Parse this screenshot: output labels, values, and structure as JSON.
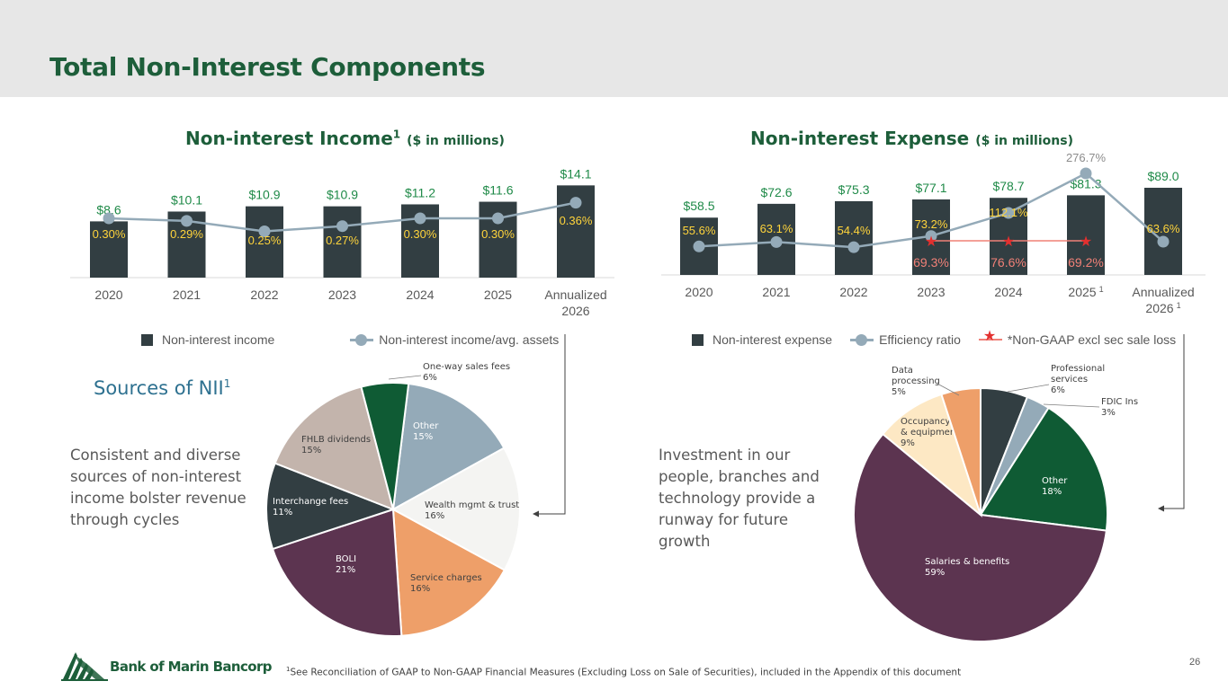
{
  "page": {
    "title": "Total Non-Interest Components",
    "page_number": "26",
    "footnote_marker": "1",
    "footnote": "See Reconciliation of GAAP to Non-GAAP Financial Measures (Excluding Loss on Sale of Securities), included in the Appendix of this document",
    "logo_text": "Bank of Marin Bancorp",
    "logo_icon": "trees-logo-icon"
  },
  "colors": {
    "bar": "#323e42",
    "line": "#94aab8",
    "green_value": "#1f8a48",
    "ratio_label": "#ffd43b",
    "nongaap_label": "#f08077",
    "star": "#e3302f",
    "title_green": "#1d5e3a"
  },
  "income_section": {
    "title": "Non-interest Income",
    "title_sup": "1",
    "title_unit": "($ in millions)",
    "legend_bar": "Non-interest income",
    "legend_line": "Non-interest income/avg. assets"
  },
  "expense_section": {
    "title": "Non-interest Expense",
    "title_unit": "($ in millions)",
    "legend_bar": "Non-interest expense",
    "legend_line": "Efficiency ratio",
    "legend_nongaap": "*Non-GAAP excl sec sale loss"
  },
  "sources_section": {
    "heading": "Sources of NII",
    "heading_sup": "1",
    "blurb": [
      "Consistent and diverse",
      "sources of non-interest",
      "income bolster revenue",
      "through cycles"
    ]
  },
  "expense_text": {
    "blurb": [
      "Investment in our",
      "people, branches and",
      "technology provide a",
      "runway for future",
      "growth"
    ]
  },
  "chart_data": [
    {
      "type": "bar",
      "categories": [
        "2020",
        "2021",
        "2022",
        "2023",
        "2024",
        "2025",
        "Annualized 2026"
      ],
      "series": [
        {
          "name": "Non-interest income",
          "values": [
            8.6,
            10.1,
            10.9,
            10.9,
            11.2,
            11.6,
            14.1
          ],
          "labels": [
            "$8.6",
            "$10.1",
            "$10.9",
            "$10.9",
            "$11.2",
            "$11.6",
            "$14.1"
          ]
        },
        {
          "name": "Non-interest income/avg. assets",
          "type": "line",
          "values": [
            0.3,
            0.29,
            0.25,
            0.27,
            0.3,
            0.3,
            0.36
          ],
          "labels": [
            "0.30%",
            "0.29%",
            "0.25%",
            "0.27%",
            "0.30%",
            "0.30%",
            "0.36%"
          ]
        }
      ],
      "category_sup": [
        "",
        "",
        "",
        "",
        "",
        "",
        ""
      ],
      "legend": "bottom"
    },
    {
      "type": "bar",
      "categories": [
        "2020",
        "2021",
        "2022",
        "2023",
        "2024",
        "2025",
        "Annualized 2026"
      ],
      "category_sup": [
        "",
        "",
        "",
        "",
        "",
        "1",
        "1"
      ],
      "series": [
        {
          "name": "Non-interest expense",
          "values": [
            58.5,
            72.6,
            75.3,
            77.1,
            78.7,
            81.3,
            89.0
          ],
          "labels": [
            "$58.5",
            "$72.6",
            "$75.3",
            "$77.1",
            "$78.7",
            "$81.3",
            "$89.0"
          ]
        },
        {
          "name": "Efficiency ratio",
          "type": "line",
          "values": [
            55.6,
            63.1,
            54.4,
            73.2,
            112.1,
            276.7,
            63.6
          ],
          "labels": [
            "55.6%",
            "63.1%",
            "54.4%",
            "73.2%",
            "112.1%",
            "276.7%",
            "63.6%"
          ]
        },
        {
          "name": "*Non-GAAP excl sec sale loss",
          "type": "line",
          "values": [
            null,
            null,
            null,
            69.3,
            76.6,
            69.2,
            null
          ],
          "labels": [
            "",
            "",
            "",
            "69.3%",
            "76.6%",
            "69.2%",
            ""
          ]
        }
      ],
      "legend": "bottom"
    },
    {
      "type": "pie",
      "slices": [
        {
          "label": "Other",
          "pct": "15%",
          "value": 15,
          "color": "#94aab8"
        },
        {
          "label": "Wealth mgmt & trust",
          "pct": "16%",
          "value": 16,
          "color": "#f4f4f2"
        },
        {
          "label": "Service charges",
          "pct": "16%",
          "value": 16,
          "color": "#ee9f69"
        },
        {
          "label": "BOLI",
          "pct": "21%",
          "value": 21,
          "color": "#5c3450"
        },
        {
          "label": "Interchange fees",
          "pct": "11%",
          "value": 11,
          "color": "#323e42"
        },
        {
          "label": "FHLB dividends",
          "pct": "15%",
          "value": 15,
          "color": "#c3b4ac"
        },
        {
          "label": "One-way sales fees",
          "pct": "6%",
          "value": 6,
          "color": "#0f5b34"
        }
      ]
    },
    {
      "type": "pie",
      "slices": [
        {
          "label": "Professional services",
          "pct": "6%",
          "value": 6,
          "color": "#323e42"
        },
        {
          "label": "FDIC Ins",
          "pct": "3%",
          "value": 3,
          "color": "#94aab8"
        },
        {
          "label": "Other",
          "pct": "18%",
          "value": 18,
          "color": "#0f5b34"
        },
        {
          "label": "Salaries & benefits",
          "pct": "59%",
          "value": 59,
          "color": "#5c3450"
        },
        {
          "label": "Occupancy & equipment",
          "pct": "9%",
          "value": 9,
          "color": "#fde8c4"
        },
        {
          "label": "Data processing",
          "pct": "5%",
          "value": 5,
          "color": "#ee9f69"
        }
      ]
    }
  ]
}
